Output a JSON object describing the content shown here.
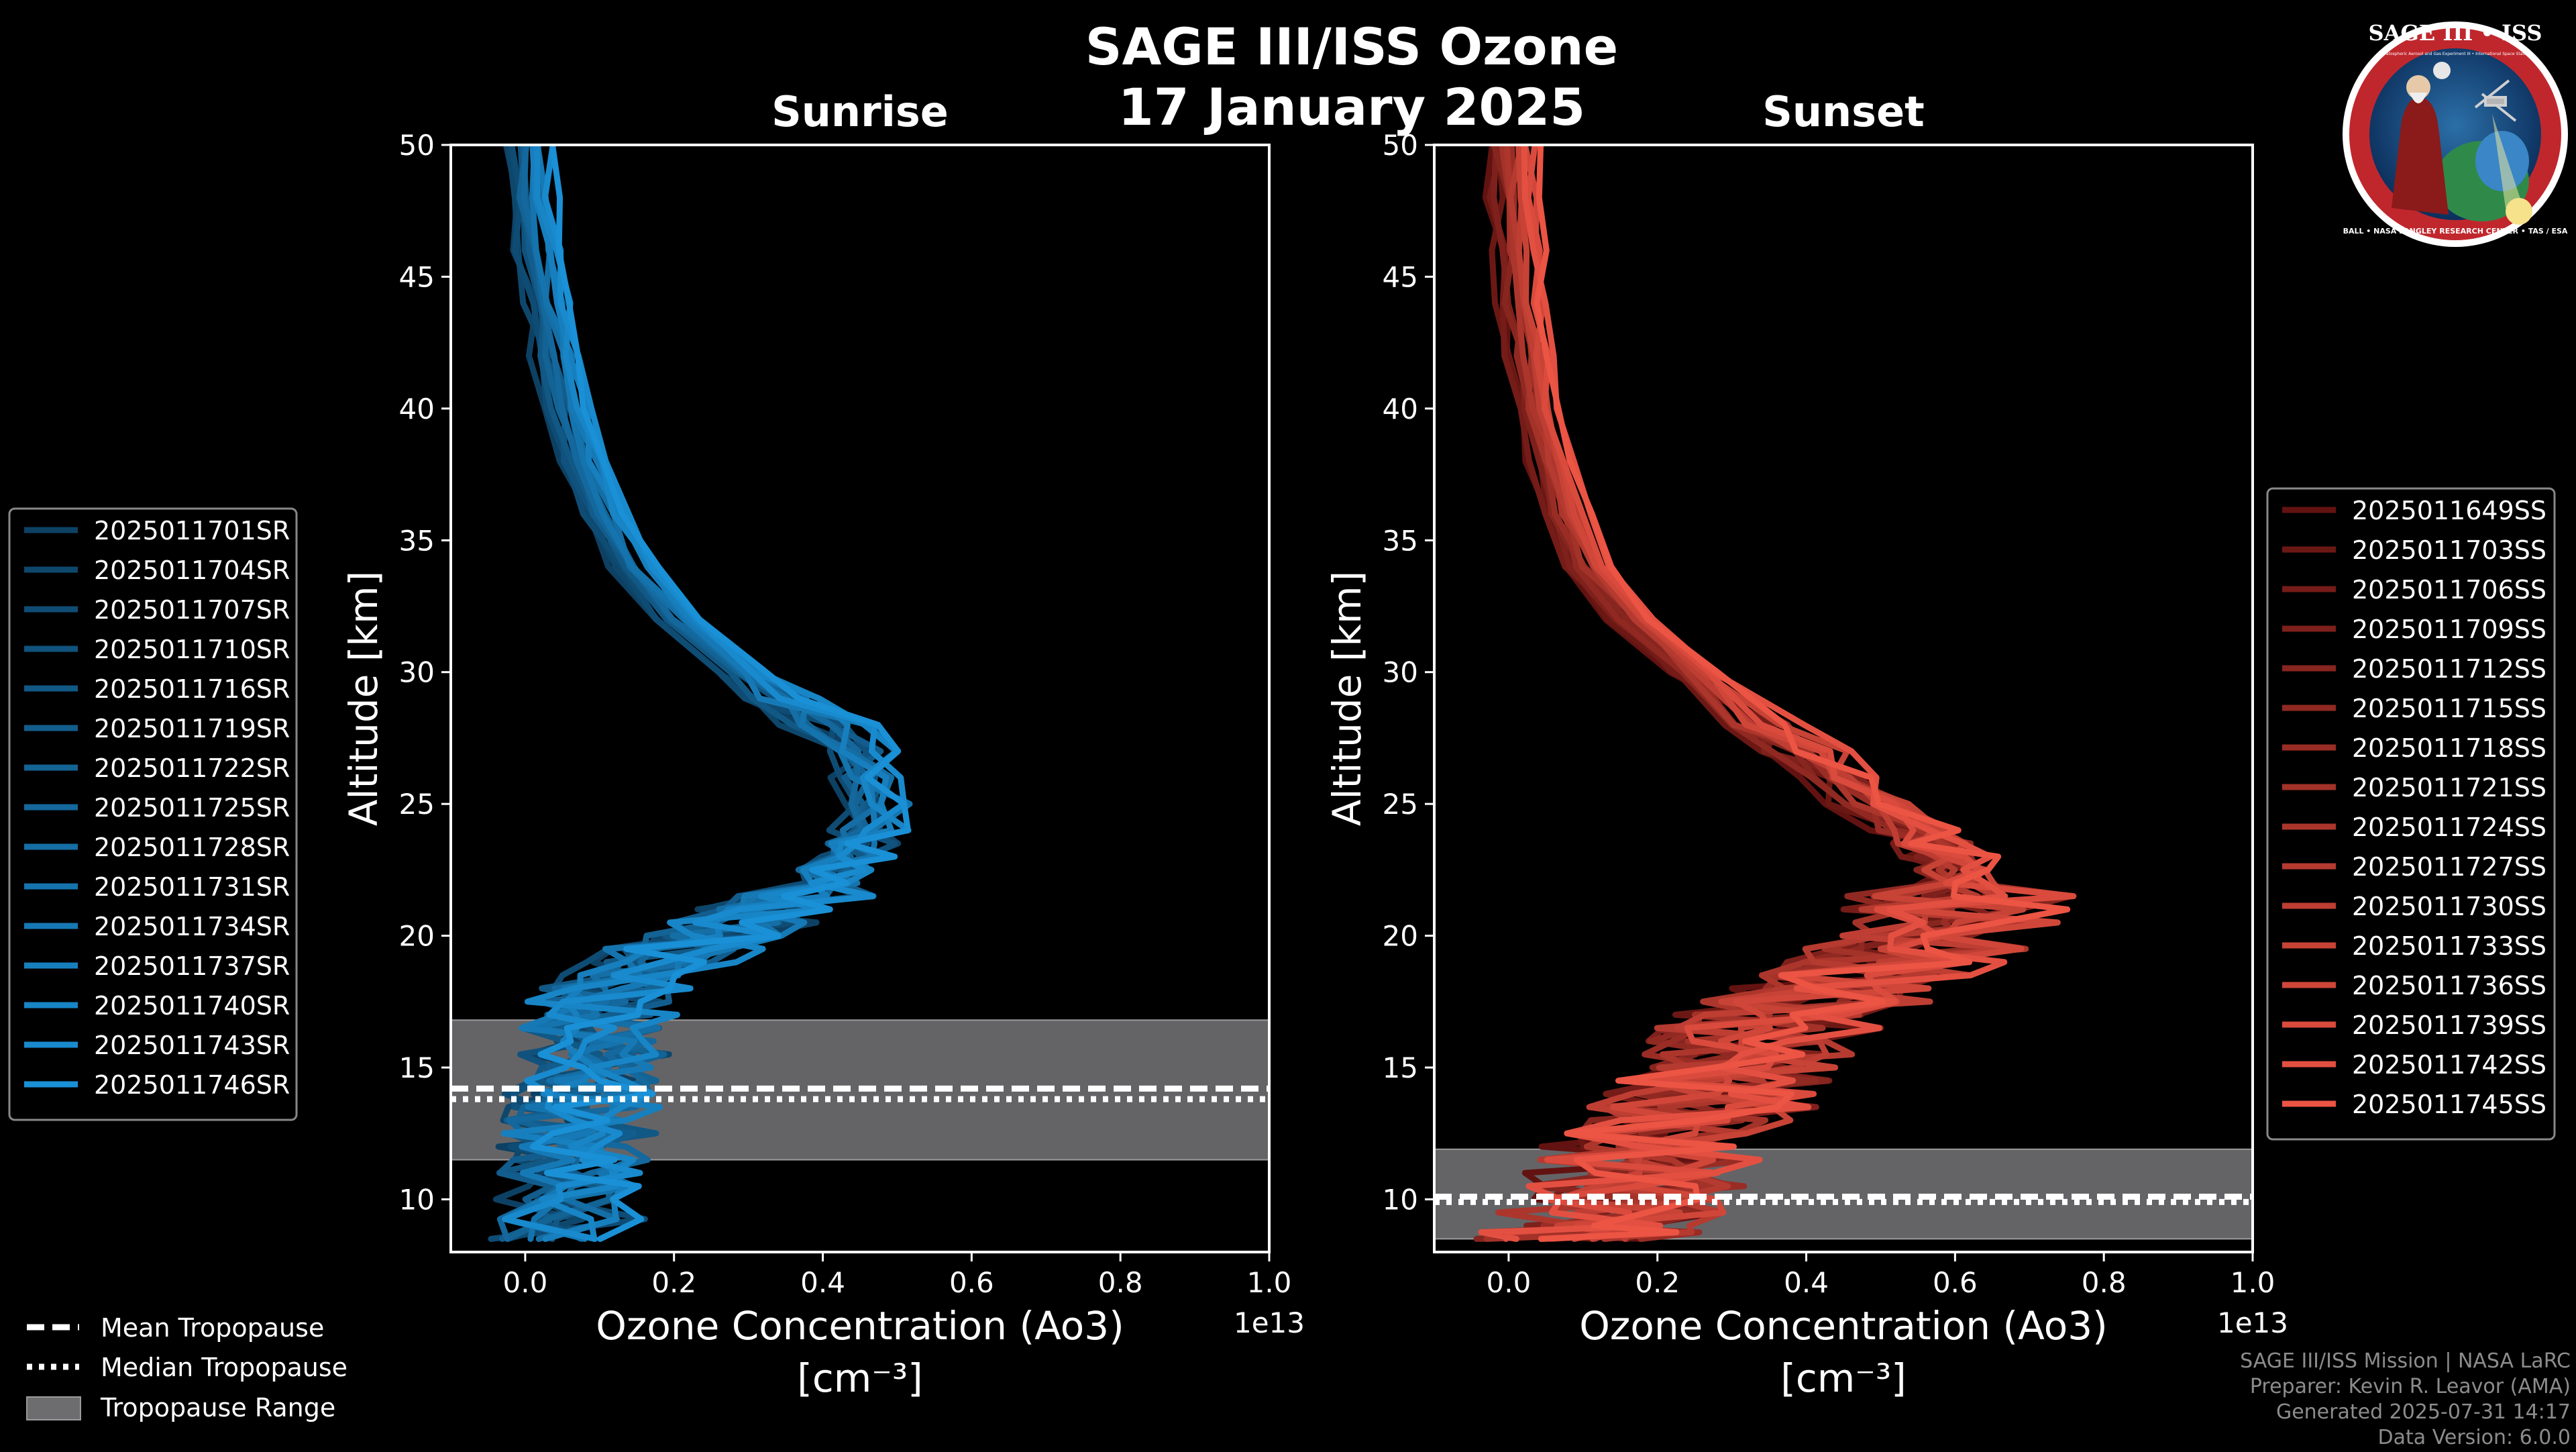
{
  "title": {
    "line1": "SAGE III/ISS Ozone",
    "line2": "17 January 2025"
  },
  "logo": {
    "top_text": "SAGE III • ISS",
    "small_text": "Stratospheric Aerosol and Gas Experiment III • International Space Station",
    "ring_text": "BALL • NASA LANGLEY RESEARCH CENTER • TAS / ESA"
  },
  "footer": {
    "line1": "SAGE III/ISS Mission | NASA LaRC",
    "line2": "Preparer: Kevin R. Leavor (AMA)",
    "line3": "Generated 2025-07-31 14:17",
    "line4": "Data Version: 6.0.0"
  },
  "legend_tropopause": [
    {
      "label": "Mean Tropopause",
      "style": "dashed"
    },
    {
      "label": "Median Tropopause",
      "style": "dotted"
    },
    {
      "label": "Tropopause Range",
      "style": "patch"
    }
  ],
  "colors": {
    "background": "#000000",
    "sunrise": "#1a90d6",
    "sunrise_dark": "#0b3350",
    "sunset": "#ec5444",
    "sunset_dark": "#4a0808",
    "tropo_band": "#6d6d70",
    "axis": "#ffffff"
  },
  "chart_data": [
    {
      "type": "line",
      "panel": "sunrise",
      "title": "Sunrise",
      "xlabel": "Ozone Concentration (Ao3)",
      "xlabel_units": "[cm⁻³]",
      "ylabel": "Altitude [km]",
      "x_scale_label": "1e13",
      "xlim": [
        -0.1,
        1.0
      ],
      "ylim": [
        8,
        50
      ],
      "xticks": [
        0.0,
        0.2,
        0.4,
        0.6,
        0.8,
        1.0
      ],
      "xtick_labels": [
        "0.0",
        "0.2",
        "0.4",
        "0.6",
        "0.8",
        "1.0"
      ],
      "yticks": [
        10,
        15,
        20,
        25,
        30,
        35,
        40,
        45,
        50
      ],
      "ytick_labels": [
        "10",
        "15",
        "20",
        "25",
        "30",
        "35",
        "40",
        "45",
        "50"
      ],
      "tropopause": {
        "mean": 14.2,
        "median": 13.8,
        "range": [
          11.5,
          16.8
        ]
      },
      "altitudes": [
        8.5,
        10,
        11,
        12,
        13,
        14,
        15,
        16,
        17,
        18,
        19,
        20,
        21,
        22,
        23,
        24,
        25,
        26,
        27,
        28,
        29,
        30,
        32,
        34,
        36,
        38,
        40,
        42,
        44,
        46,
        48,
        50
      ],
      "base_profile": [
        0.05,
        0.06,
        0.06,
        0.07,
        0.07,
        0.08,
        0.09,
        0.1,
        0.1,
        0.12,
        0.18,
        0.25,
        0.33,
        0.4,
        0.44,
        0.47,
        0.48,
        0.47,
        0.45,
        0.41,
        0.35,
        0.29,
        0.21,
        0.15,
        0.11,
        0.08,
        0.06,
        0.045,
        0.035,
        0.02,
        0.01,
        0.005
      ],
      "legend_position": "center-left",
      "series": [
        {
          "name": "2025011701SR"
        },
        {
          "name": "2025011704SR"
        },
        {
          "name": "2025011707SR"
        },
        {
          "name": "2025011710SR"
        },
        {
          "name": "2025011716SR"
        },
        {
          "name": "2025011719SR"
        },
        {
          "name": "2025011722SR"
        },
        {
          "name": "2025011725SR"
        },
        {
          "name": "2025011728SR"
        },
        {
          "name": "2025011731SR"
        },
        {
          "name": "2025011734SR"
        },
        {
          "name": "2025011737SR"
        },
        {
          "name": "2025011740SR"
        },
        {
          "name": "2025011743SR"
        },
        {
          "name": "2025011746SR"
        }
      ]
    },
    {
      "type": "line",
      "panel": "sunset",
      "title": "Sunset",
      "xlabel": "Ozone Concentration (Ao3)",
      "xlabel_units": "[cm⁻³]",
      "ylabel": "Altitude [km]",
      "x_scale_label": "1e13",
      "xlim": [
        -0.1,
        1.0
      ],
      "ylim": [
        8,
        50
      ],
      "xticks": [
        0.0,
        0.2,
        0.4,
        0.6,
        0.8,
        1.0
      ],
      "xtick_labels": [
        "0.0",
        "0.2",
        "0.4",
        "0.6",
        "0.8",
        "1.0"
      ],
      "yticks": [
        10,
        15,
        20,
        25,
        30,
        35,
        40,
        45,
        50
      ],
      "ytick_labels": [
        "10",
        "15",
        "20",
        "25",
        "30",
        "35",
        "40",
        "45",
        "50"
      ],
      "tropopause": {
        "mean": 10.1,
        "median": 9.9,
        "range": [
          8.5,
          11.9
        ]
      },
      "altitudes": [
        8.5,
        9,
        10,
        11,
        12,
        13,
        14,
        15,
        16,
        17,
        18,
        19,
        20,
        21,
        22,
        23,
        24,
        25,
        26,
        27,
        28,
        30,
        32,
        34,
        36,
        38,
        40,
        42,
        44,
        46,
        48,
        50
      ],
      "base_profile": [
        0.1,
        0.12,
        0.15,
        0.18,
        0.2,
        0.24,
        0.28,
        0.3,
        0.33,
        0.38,
        0.45,
        0.52,
        0.57,
        0.6,
        0.61,
        0.59,
        0.55,
        0.5,
        0.45,
        0.4,
        0.34,
        0.25,
        0.17,
        0.11,
        0.08,
        0.06,
        0.04,
        0.03,
        0.02,
        0.015,
        0.01,
        0.005
      ],
      "legend_position": "center-right",
      "series": [
        {
          "name": "2025011649SS"
        },
        {
          "name": "2025011703SS"
        },
        {
          "name": "2025011706SS"
        },
        {
          "name": "2025011709SS"
        },
        {
          "name": "2025011712SS"
        },
        {
          "name": "2025011715SS"
        },
        {
          "name": "2025011718SS"
        },
        {
          "name": "2025011721SS"
        },
        {
          "name": "2025011724SS"
        },
        {
          "name": "2025011727SS"
        },
        {
          "name": "2025011730SS"
        },
        {
          "name": "2025011733SS"
        },
        {
          "name": "2025011736SS"
        },
        {
          "name": "2025011739SS"
        },
        {
          "name": "2025011742SS"
        },
        {
          "name": "2025011745SS"
        }
      ]
    }
  ]
}
